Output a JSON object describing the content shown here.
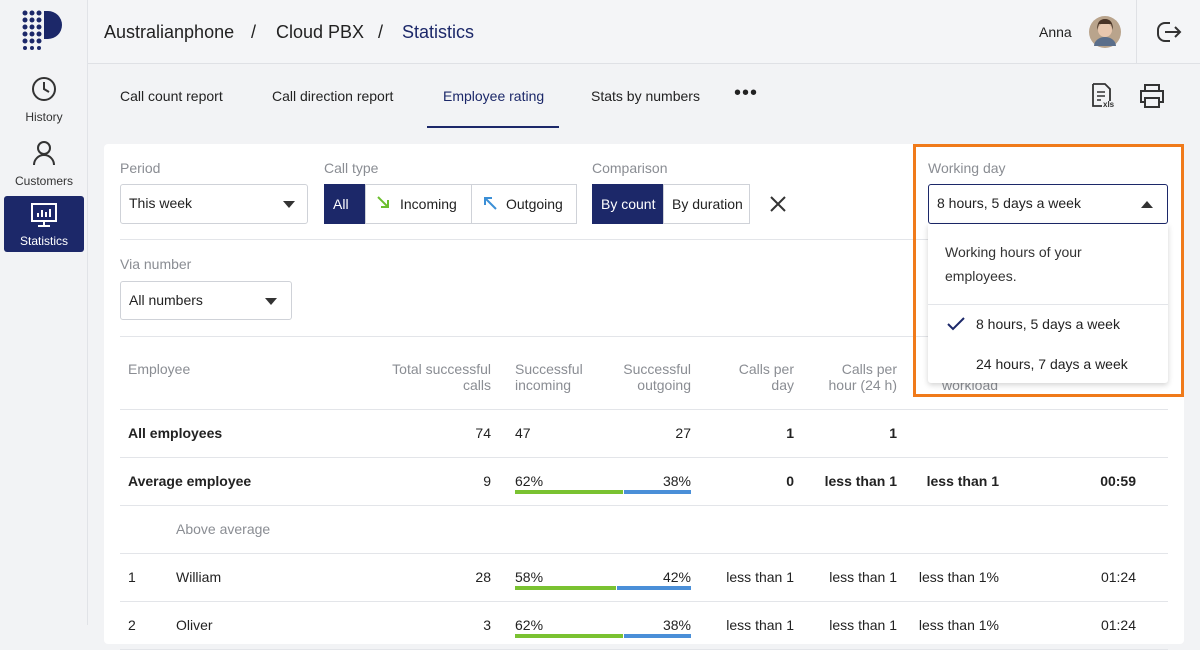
{
  "sidebar": {
    "nav": [
      "History",
      "Customers",
      "Statistics"
    ],
    "active": 2
  },
  "header": {
    "breadcrumb": [
      "Australianphone",
      "Cloud PBX",
      "Statistics"
    ],
    "user": "Anna"
  },
  "tabs": {
    "items": [
      "Call count report",
      "Call direction report",
      "Employee rating",
      "Stats by numbers"
    ],
    "active": 2
  },
  "filters": {
    "period": {
      "label": "Period",
      "value": "This week"
    },
    "call_type": {
      "label": "Call type",
      "options": [
        "All",
        "Incoming",
        "Outgoing"
      ],
      "selected": 0
    },
    "comparison": {
      "label": "Comparison",
      "options": [
        "By count",
        "By duration"
      ],
      "selected": 0
    },
    "working_day": {
      "label": "Working day",
      "value": "8 hours, 5 days a week",
      "hint": "Working hours of your employees.",
      "options": [
        "8 hours, 5 days a week",
        "24 hours, 7 days a week"
      ],
      "selected": 0
    },
    "via_number": {
      "label": "Via number",
      "value": "All numbers"
    }
  },
  "table": {
    "columns": [
      "Employee",
      "Total successful calls",
      "Successful incoming",
      "Successful outgoing",
      "Calls per day",
      "Calls per hour (24 h)",
      "workload"
    ],
    "rows": [
      {
        "employee": "All employees",
        "total": 74,
        "incoming": 47,
        "outgoing": 27,
        "per_day": 1,
        "per_hour": 1
      },
      {
        "employee": "Average employee",
        "total": 9,
        "incoming": {
          "value": 62,
          "label": "62%"
        },
        "outgoing": {
          "value": 38,
          "label": "38%"
        },
        "per_day": 0,
        "per_hour": "less than 1",
        "workload": "less than 1",
        "duration": "00:59"
      },
      {
        "section": "Above average"
      },
      {
        "rank": 1,
        "employee": "William",
        "total": 28,
        "incoming": {
          "value": 58,
          "label": "58%"
        },
        "outgoing": {
          "value": 42,
          "label": "42%"
        },
        "per_day": "less than 1",
        "per_hour": "less than 1",
        "workload": "less than 1%",
        "duration": "01:24"
      },
      {
        "rank": 2,
        "employee": "Oliver",
        "total": 3,
        "incoming": {
          "value": 62,
          "label": "62%"
        },
        "outgoing": {
          "value": 38,
          "label": "38%"
        },
        "per_day": "less than 1",
        "per_hour": "less than 1",
        "workload": "less than 1%",
        "duration": "01:24"
      }
    ]
  }
}
